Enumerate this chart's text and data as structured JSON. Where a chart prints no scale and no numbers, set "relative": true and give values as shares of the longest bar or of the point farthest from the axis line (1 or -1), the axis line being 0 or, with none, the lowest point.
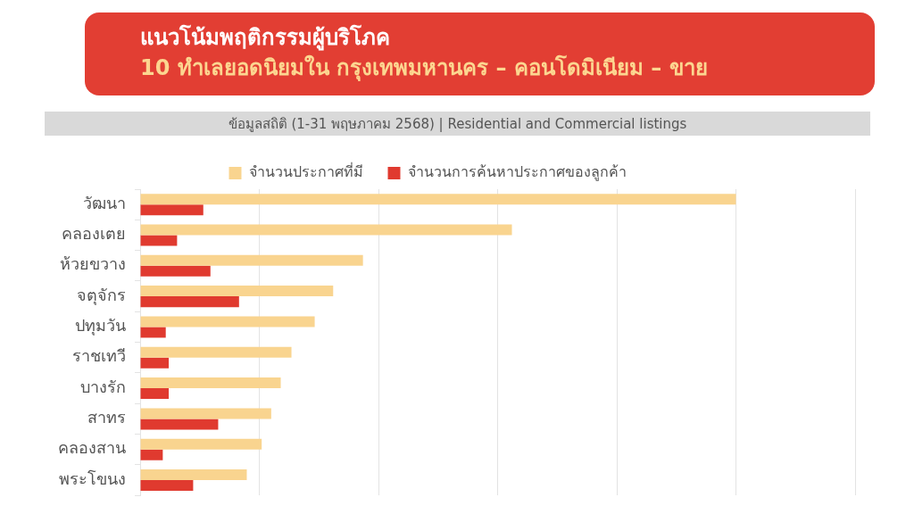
{
  "chart_data": {
    "type": "bar",
    "orientation": "horizontal",
    "relative": true,
    "title": "แนวโน้มพฤติกรรมผู้บริโภค",
    "subtitle": "10 ทำเลยอดนิยมใน กรุงเทพมหานคร – คอนโดมิเนียม – ขาย",
    "annotations": [
      "ข้อมูลสถิติ (1-31 พฤษภาคม 2568) | Residential and Commercial listings"
    ],
    "categories": [
      "วัฒนา",
      "คลองเตย",
      "ห้วยขวาง",
      "จตุจักร",
      "ปทุมวัน",
      "ราชเทวี",
      "บางรัก",
      "สาทร",
      "คลองสาน",
      "พระโขนง"
    ],
    "series": [
      {
        "name": "จำนวนประกาศที่มี",
        "color": "#f9d48f",
        "values": [
          1,
          0.624,
          0.374,
          0.324,
          0.293,
          0.254,
          0.236,
          0.22,
          0.204,
          0.179
        ]
      },
      {
        "name": "จำนวนการค้นหาประกาศของลูกค้า",
        "color": "#e03a2f",
        "values": [
          0.106,
          0.062,
          0.118,
          0.166,
          0.043,
          0.048,
          0.048,
          0.131,
          0.038,
          0.089
        ]
      }
    ],
    "grid": "x",
    "legend": "top"
  }
}
